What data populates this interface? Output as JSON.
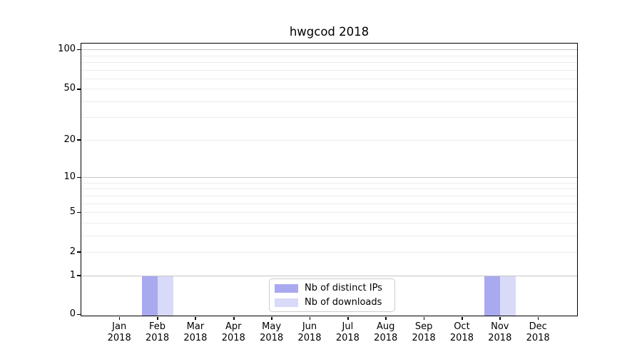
{
  "chart_data": {
    "type": "bar",
    "title": "hwgcod 2018",
    "x_month_labels": [
      "Jan",
      "Feb",
      "Mar",
      "Apr",
      "May",
      "Jun",
      "Jul",
      "Aug",
      "Sep",
      "Oct",
      "Nov",
      "Dec"
    ],
    "x_year_label": "2018",
    "series": [
      {
        "name": "Nb of distinct IPs",
        "color": "#a9a9f0",
        "values": [
          0,
          1,
          0,
          0,
          0,
          0,
          0,
          0,
          0,
          0,
          1,
          0
        ]
      },
      {
        "name": "Nb of downloads",
        "color": "#d9d9f8",
        "values": [
          0,
          1,
          0,
          0,
          0,
          0,
          0,
          0,
          0,
          0,
          1,
          0
        ]
      }
    ],
    "yscale": "symlog",
    "ylim": [
      0,
      113
    ],
    "y_labeled_ticks": [
      0,
      1,
      2,
      5,
      10,
      20,
      50,
      100
    ],
    "y_major_gridlines": [
      1,
      10,
      100
    ],
    "y_minor_gridlines": [
      2,
      3,
      4,
      5,
      6,
      7,
      8,
      9,
      20,
      30,
      40,
      50,
      60,
      70,
      80,
      90
    ],
    "grid": "horizontal",
    "legend_position": "bottom-center"
  },
  "legend": {
    "entries": [
      {
        "label": "Nb of distinct IPs",
        "color": "#a9a9f0"
      },
      {
        "label": "Nb of downloads",
        "color": "#d9d9f8"
      }
    ]
  },
  "colors": {
    "major_grid": "#c6c6c6",
    "minor_grid": "#ececec",
    "spine": "#000000",
    "bar_distinct_ips": "#a9a9f0",
    "bar_downloads": "#d9d9f8"
  }
}
